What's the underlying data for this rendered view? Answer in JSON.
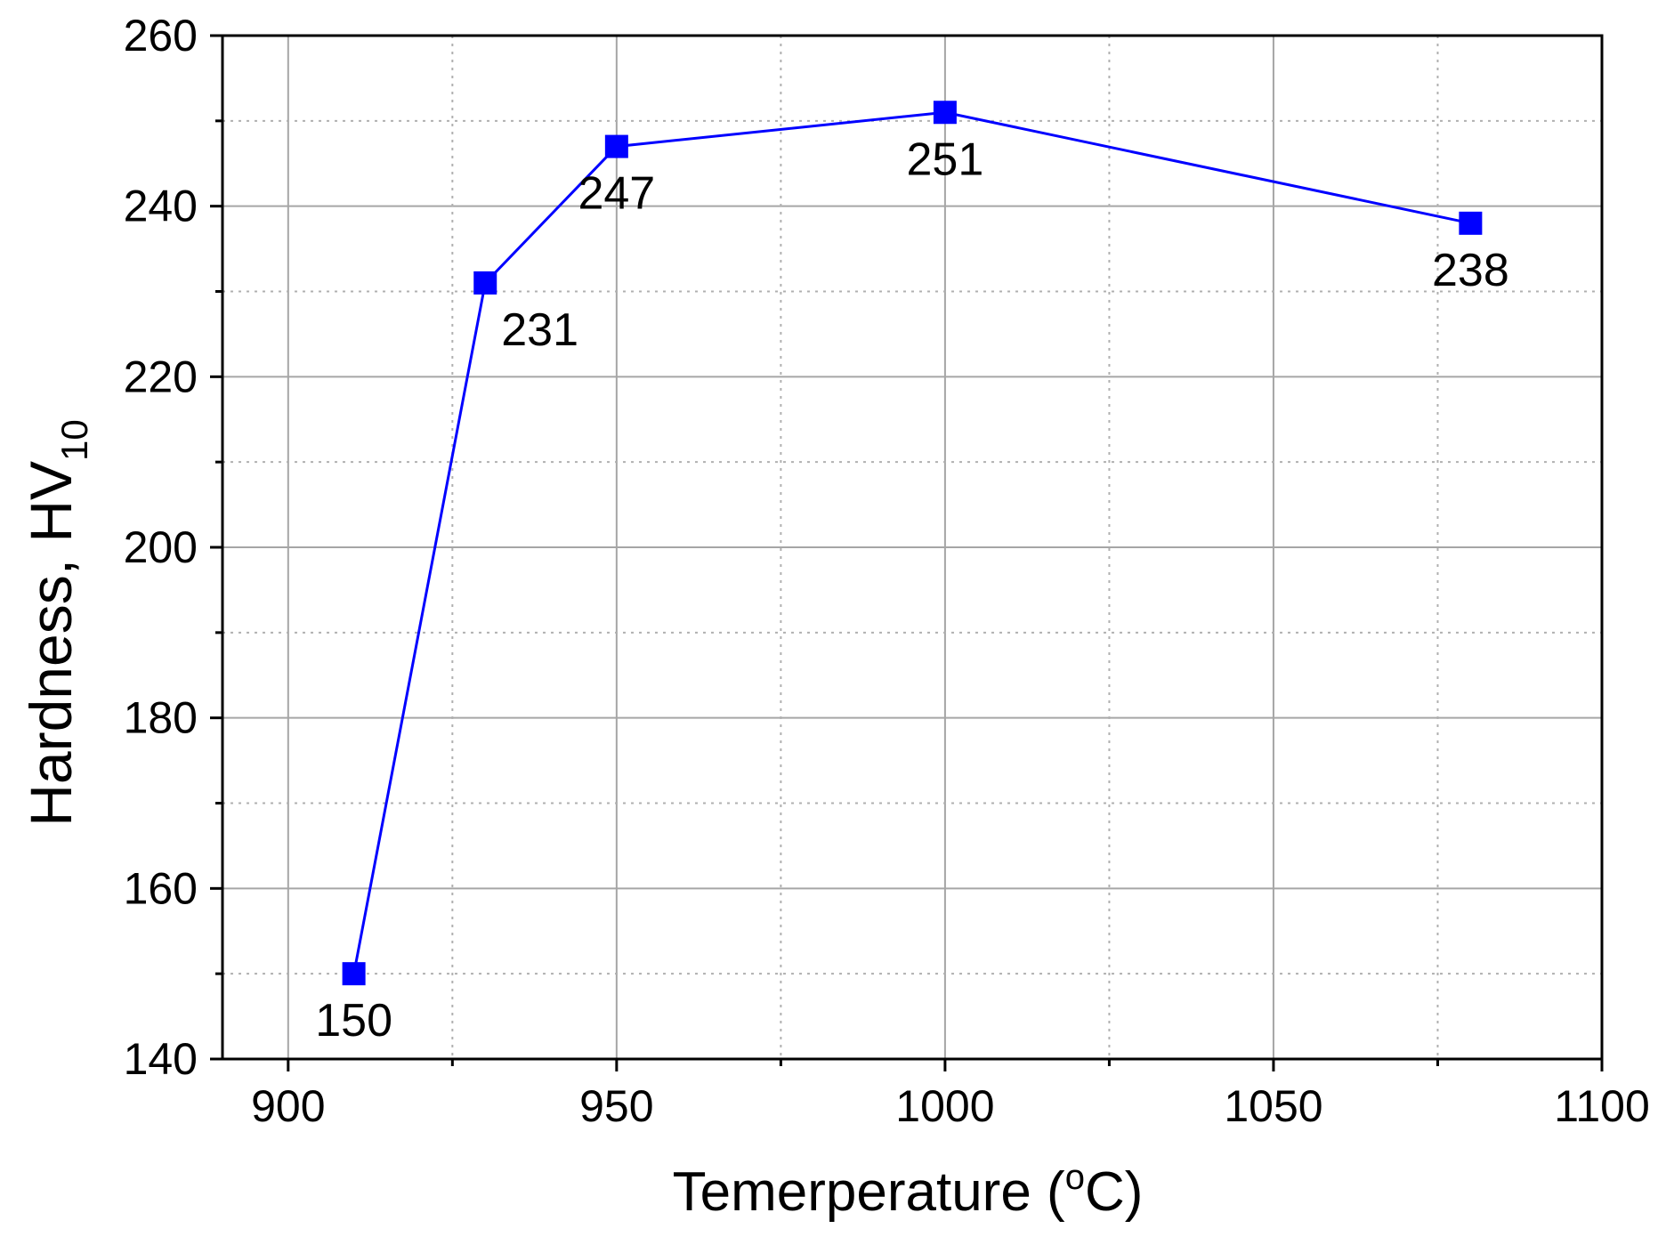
{
  "chart_data": {
    "type": "line",
    "title": "",
    "xlabel": "Temerperature (",
    "xlabel_sup": "o",
    "xlabel_unit": "C)",
    "ylabel": "Hardness, HV",
    "ylabel_sub": "10",
    "xlim": [
      890,
      1100
    ],
    "ylim": [
      140,
      260
    ],
    "x_ticks": [
      900,
      950,
      1000,
      1050,
      1100
    ],
    "y_ticks": [
      140,
      160,
      180,
      200,
      220,
      240,
      260
    ],
    "x_minor_grid": [
      925,
      975,
      1025,
      1075
    ],
    "y_minor_grid": [
      150,
      170,
      190,
      210,
      230,
      250
    ],
    "grid": true,
    "legend": "none",
    "series": [
      {
        "x": [
          910,
          930,
          950,
          1000,
          1080
        ],
        "y": [
          150,
          231,
          247,
          251,
          238
        ],
        "labels": [
          "150",
          "231",
          "247",
          "251",
          "238"
        ],
        "label_positions": [
          "below",
          "below-right",
          "below",
          "below",
          "below"
        ],
        "color": "#0000ff",
        "marker": "square"
      }
    ]
  }
}
